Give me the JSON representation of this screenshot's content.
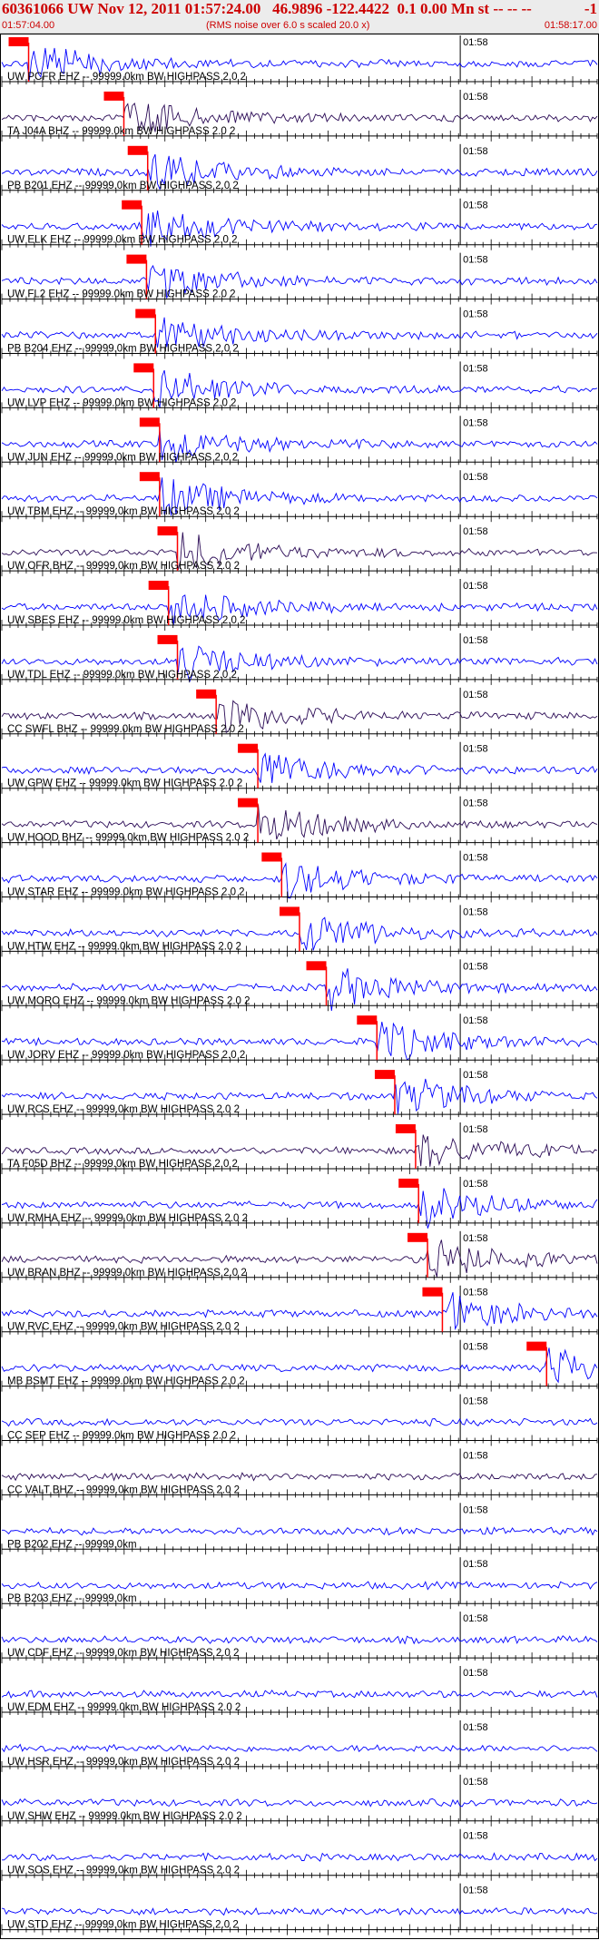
{
  "header": {
    "title": "60361066 UW Nov 12, 2011 01:57:24.00   46.9896 -122.4422  0.1 0.00 Mn st -- -- --",
    "title_right": "-1",
    "start_time": "01:57:04.00",
    "note": "(RMS noise over 6.0 s scaled 20.0 x)",
    "end_time": "01:58:17.00"
  },
  "chart_data": {
    "type": "line",
    "minute_label": "01:58",
    "x_range": [
      "01:57:04.00",
      "01:58:17.00"
    ],
    "colors": {
      "trace": "#0000ff",
      "trace_dark": "#2a0a55",
      "pick": "#ff0000",
      "axis": "#000000"
    },
    "traces": [
      {
        "label": "UW PCFR EHZ -- 99999.0km BW  HIGHPASS  2.0  2",
        "color": "trace",
        "pick": 0.045
      },
      {
        "label": "TA J04A BHZ -- 99999.0km BW  HIGHPASS  2.0  2",
        "color": "trace_dark",
        "pick": 0.205
      },
      {
        "label": "PB B201 EHZ -- 99999.0km BW  HIGHPASS  2.0  2",
        "color": "trace",
        "pick": 0.245
      },
      {
        "label": "UW ELK EHZ -- 99999.0km BW  HIGHPASS  2.0  2",
        "color": "trace",
        "pick": 0.235
      },
      {
        "label": "UW FL2 EHZ -- 99999.0km BW  HIGHPASS  2.0  2",
        "color": "trace",
        "pick": 0.243
      },
      {
        "label": "PB B204 EHZ -- 99999.0km BW  HIGHPASS  2.0  2",
        "color": "trace",
        "pick": 0.258
      },
      {
        "label": "UW LVP EHZ -- 99999.0km BW  HIGHPASS  2.0  2",
        "color": "trace",
        "pick": 0.255
      },
      {
        "label": "UW JUN EHZ -- 99999.0km BW  HIGHPASS  2.0  2",
        "color": "trace",
        "pick": 0.265
      },
      {
        "label": "UW TBM EHZ -- 99999.0km BW  HIGHPASS  2.0  2",
        "color": "trace",
        "pick": 0.265
      },
      {
        "label": "UW OFR BHZ -- 99999.0km BW  HIGHPASS  2.0  2",
        "color": "trace_dark",
        "pick": 0.295
      },
      {
        "label": "UW SBES EHZ -- 99999.0km BW  HIGHPASS  2.0  2",
        "color": "trace",
        "pick": 0.28
      },
      {
        "label": "UW TDL EHZ -- 99999.0km BW  HIGHPASS  2.0  2",
        "color": "trace",
        "pick": 0.295
      },
      {
        "label": "CC SWFL BHZ -- 99999.0km BW  HIGHPASS  2.0  2",
        "color": "trace_dark",
        "pick": 0.36
      },
      {
        "label": "UW GPW EHZ -- 99999.0km BW  HIGHPASS  2.0  2",
        "color": "trace",
        "pick": 0.43
      },
      {
        "label": "UW HOOD BHZ -- 99999.0km BW  HIGHPASS  2.0  2",
        "color": "trace_dark",
        "pick": 0.43
      },
      {
        "label": "UW STAR EHZ -- 99999.0km BW  HIGHPASS  2.0  2",
        "color": "trace",
        "pick": 0.47
      },
      {
        "label": "UW HTW EHZ -- 99999.0km BW  HIGHPASS  2.0  2",
        "color": "trace",
        "pick": 0.5
      },
      {
        "label": "UW MORO EHZ -- 99999.0km BW  HIGHPASS  2.0  2",
        "color": "trace",
        "pick": 0.545
      },
      {
        "label": "UW JORV EHZ -- 99999.0km BW  HIGHPASS  2.0  2",
        "color": "trace",
        "pick": 0.63
      },
      {
        "label": "UW RCS EHZ -- 99999.0km BW  HIGHPASS  2.0  2",
        "color": "trace",
        "pick": 0.66
      },
      {
        "label": "TA F05D BHZ -- 99999.0km BW  HIGHPASS  2.0  2",
        "color": "trace_dark",
        "pick": 0.695
      },
      {
        "label": "UW RMHA EHZ -- 99999.0km BW  HIGHPASS  2.0  2",
        "color": "trace",
        "pick": 0.7
      },
      {
        "label": "UW BRAN BHZ -- 99999.0km BW  HIGHPASS  2.0  2",
        "color": "trace_dark",
        "pick": 0.715
      },
      {
        "label": "UW RVC EHZ -- 99999.0km BW  HIGHPASS  2.0  2",
        "color": "trace",
        "pick": 0.74
      },
      {
        "label": "MB BSMT EHZ -- 99999.0km BW  HIGHPASS  2.0  2",
        "color": "trace",
        "pick": 0.915
      },
      {
        "label": "CC SEP EHZ -- 99999.0km BW  HIGHPASS  2.0  2",
        "color": "trace",
        "pick": null
      },
      {
        "label": "CC VALT BHZ -- 99999.0km BW  HIGHPASS  2.0  2",
        "color": "trace_dark",
        "pick": null
      },
      {
        "label": "PB B202 EHZ -- 99999.0km",
        "color": "trace",
        "pick": null
      },
      {
        "label": "PB B203 EHZ -- 99999.0km",
        "color": "trace",
        "pick": null
      },
      {
        "label": "UW CDF EHZ -- 99999.0km BW  HIGHPASS  2.0  2",
        "color": "trace",
        "pick": null
      },
      {
        "label": "UW EDM EHZ -- 99999.0km BW  HIGHPASS  2.0  2",
        "color": "trace",
        "pick": null
      },
      {
        "label": "UW HSR EHZ -- 99999.0km BW  HIGHPASS  2.0  2",
        "color": "trace",
        "pick": null
      },
      {
        "label": "UW SHW EHZ -- 99999.0km BW  HIGHPASS  2.0  2",
        "color": "trace",
        "pick": null
      },
      {
        "label": "UW SOS EHZ -- 99999.0km BW  HIGHPASS  2.0  2",
        "color": "trace",
        "pick": null
      },
      {
        "label": "UW STD EHZ -- 99999.0km BW  HIGHPASS  2.0  2",
        "color": "trace",
        "pick": null
      }
    ]
  }
}
